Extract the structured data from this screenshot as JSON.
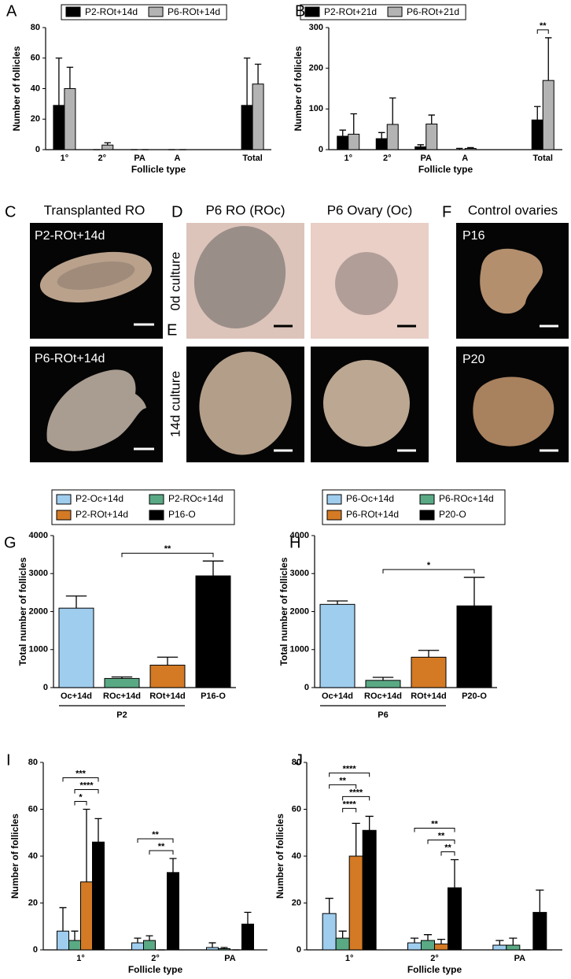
{
  "chart_data": [
    {
      "panel": "A",
      "type": "bar",
      "ylabel": "Number of follicles",
      "xlabel": "Follicle type",
      "categories": [
        "1°",
        "2°",
        "PA",
        "A",
        null,
        "Total"
      ],
      "series": [
        {
          "name": "P2-ROt+14d",
          "color": "#000000",
          "values": [
            29,
            0,
            0,
            0,
            null,
            29
          ],
          "errors": [
            31,
            0,
            0,
            0,
            null,
            31
          ]
        },
        {
          "name": "P6-ROt+14d",
          "color": "#b3b3b3",
          "values": [
            40,
            3,
            0,
            0,
            null,
            43
          ],
          "errors": [
            14,
            1.5,
            0,
            0,
            null,
            13
          ]
        }
      ],
      "ylim": [
        0,
        80
      ],
      "yticks": [
        0,
        20,
        40,
        60,
        80
      ]
    },
    {
      "panel": "B",
      "type": "bar",
      "ylabel": "Number of follicles",
      "xlabel": "Follicle type",
      "categories": [
        "1°",
        "2°",
        "PA",
        "A",
        null,
        "Total"
      ],
      "series": [
        {
          "name": "P2-ROt+21d",
          "color": "#000000",
          "values": [
            33,
            27,
            7,
            0,
            null,
            73
          ],
          "errors": [
            15,
            15,
            5,
            3,
            null,
            33
          ]
        },
        {
          "name": "P6-ROt+21d",
          "color": "#b3b3b3",
          "values": [
            38,
            62,
            63,
            3,
            null,
            170
          ],
          "errors": [
            50,
            65,
            22,
            2,
            null,
            105
          ]
        }
      ],
      "significance": [
        {
          "category": 5,
          "from": 0,
          "to": 1,
          "label": "**"
        }
      ],
      "ylim": [
        0,
        300
      ],
      "yticks": [
        0,
        100,
        200,
        300
      ]
    },
    {
      "panel": "G",
      "type": "bar",
      "ylabel": "Total number of follicles",
      "categories": [
        "Oc+14d",
        "ROc+14d",
        "ROt+14d",
        "P16-O"
      ],
      "values": [
        2090,
        240,
        590,
        2940
      ],
      "errors": [
        320,
        40,
        210,
        390
      ],
      "colors": [
        "#9fcdee",
        "#5aa985",
        "#d47a25",
        "#000000"
      ],
      "legend": [
        {
          "name": "P2-Oc+14d",
          "color": "#9fcdee"
        },
        {
          "name": "P2-ROc+14d",
          "color": "#5aa985"
        },
        {
          "name": "P2-ROt+14d",
          "color": "#d47a25"
        },
        {
          "name": "P16-O",
          "color": "#000000"
        }
      ],
      "group": {
        "label": "P2",
        "from": 0,
        "to": 2
      },
      "significance": [
        {
          "from": 1,
          "to": 3,
          "label": "**"
        }
      ],
      "ylim": [
        0,
        4000
      ],
      "yticks": [
        0,
        1000,
        2000,
        3000,
        4000
      ]
    },
    {
      "panel": "H",
      "type": "bar",
      "ylabel": "Total number of follicles",
      "categories": [
        "Oc+14d",
        "ROc+14d",
        "ROt+14d",
        "P20-O"
      ],
      "values": [
        2190,
        190,
        800,
        2150
      ],
      "errors": [
        90,
        80,
        180,
        750
      ],
      "colors": [
        "#9fcdee",
        "#5aa985",
        "#d47a25",
        "#000000"
      ],
      "legend": [
        {
          "name": "P6-Oc+14d",
          "color": "#9fcdee"
        },
        {
          "name": "P6-ROc+14d",
          "color": "#5aa985"
        },
        {
          "name": "P6-ROt+14d",
          "color": "#d47a25"
        },
        {
          "name": "P20-O",
          "color": "#000000"
        }
      ],
      "group": {
        "label": "P6",
        "from": 0,
        "to": 2
      },
      "significance": [
        {
          "from": 1,
          "to": 3,
          "label": "*"
        }
      ],
      "ylim": [
        0,
        4000
      ],
      "yticks": [
        0,
        1000,
        2000,
        3000,
        4000
      ]
    },
    {
      "panel": "I",
      "type": "bar",
      "ylabel": "Number of follicles",
      "xlabel": "Follicle type",
      "categories": [
        "1°",
        "2°",
        "PA"
      ],
      "series": [
        {
          "color": "#9fcdee",
          "values": [
            8,
            3,
            1
          ],
          "errors": [
            10,
            2,
            2
          ]
        },
        {
          "color": "#5aa985",
          "values": [
            4,
            4,
            0.5
          ],
          "errors": [
            4,
            2,
            0.5
          ]
        },
        {
          "color": "#d47a25",
          "values": [
            29,
            0,
            0
          ],
          "errors": [
            31,
            0,
            0
          ]
        },
        {
          "color": "#000000",
          "values": [
            46,
            33,
            11
          ],
          "errors": [
            10,
            6,
            5
          ]
        }
      ],
      "significance": [
        {
          "category": 0,
          "from": 1,
          "to": 2,
          "label": "*"
        },
        {
          "category": 0,
          "from": 1,
          "to": 3,
          "label": "****"
        },
        {
          "category": 0,
          "from": 0,
          "to": 3,
          "label": "***"
        },
        {
          "category": 1,
          "from": 1,
          "to": 3,
          "label": "**"
        },
        {
          "category": 1,
          "from": 0,
          "to": 3,
          "label": "**"
        }
      ],
      "ylim": [
        0,
        80
      ],
      "yticks": [
        0,
        20,
        40,
        60,
        80
      ]
    },
    {
      "panel": "J",
      "type": "bar",
      "ylabel": "Number of follicles",
      "xlabel": "Follicle type",
      "categories": [
        "1°",
        "2°",
        "PA"
      ],
      "series": [
        {
          "color": "#9fcdee",
          "values": [
            15.5,
            3,
            2
          ],
          "errors": [
            6.5,
            2,
            2
          ]
        },
        {
          "color": "#5aa985",
          "values": [
            5,
            4,
            2
          ],
          "errors": [
            3,
            2.5,
            3
          ]
        },
        {
          "color": "#d47a25",
          "values": [
            40,
            2.5,
            0
          ],
          "errors": [
            14,
            2,
            0
          ]
        },
        {
          "color": "#000000",
          "values": [
            51,
            26.5,
            16
          ],
          "errors": [
            6,
            12,
            9.5
          ]
        }
      ],
      "significance": [
        {
          "category": 0,
          "from": 1,
          "to": 2,
          "label": "****"
        },
        {
          "category": 0,
          "from": 1,
          "to": 3,
          "label": "****"
        },
        {
          "category": 0,
          "from": 0,
          "to": 2,
          "label": "**"
        },
        {
          "category": 0,
          "from": 0,
          "to": 3,
          "label": "****"
        },
        {
          "category": 1,
          "from": 2,
          "to": 3,
          "label": "**"
        },
        {
          "category": 1,
          "from": 1,
          "to": 3,
          "label": "**"
        },
        {
          "category": 1,
          "from": 0,
          "to": 3,
          "label": "**"
        }
      ],
      "ylim": [
        0,
        80
      ],
      "yticks": [
        0,
        20,
        40,
        60,
        80
      ]
    }
  ],
  "photos": {
    "C": {
      "panel": "C",
      "title": "Transplanted RO",
      "labels": [
        "P2-ROt+14d",
        "P6-ROt+14d"
      ]
    },
    "D": {
      "panel": "D",
      "columns": [
        "P6 RO (ROc)",
        "P6 Ovary (Oc)"
      ],
      "rows": [
        "0d culture",
        "14d culture"
      ]
    },
    "E": {
      "panel": "E"
    },
    "F": {
      "panel": "F",
      "title": "Control ovaries",
      "labels": [
        "P16",
        "P20"
      ]
    }
  }
}
